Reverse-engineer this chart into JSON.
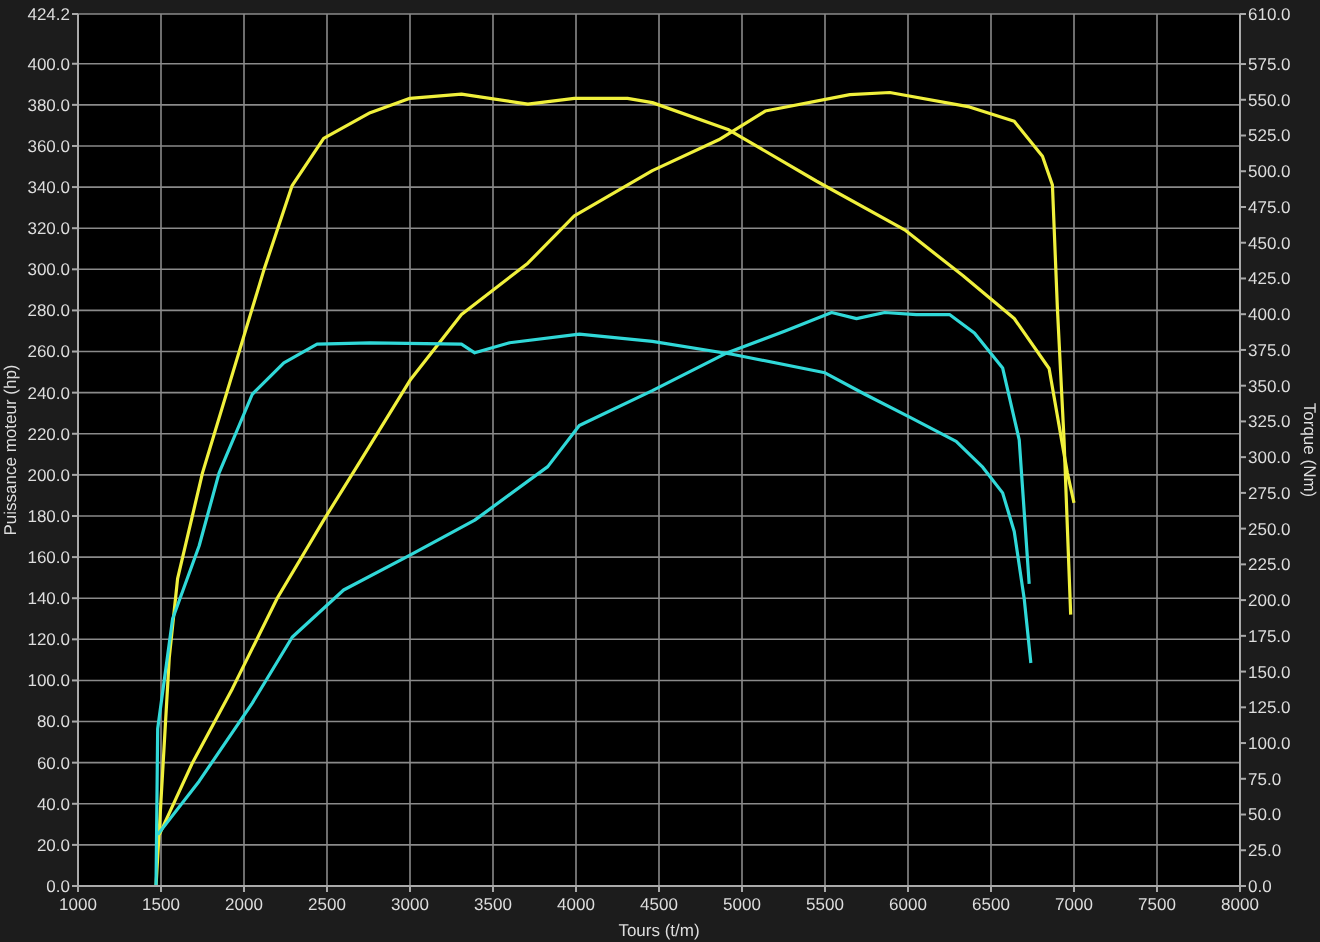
{
  "chart_data": {
    "type": "line",
    "xlabel": "Tours (t/m)",
    "ylabel": "Puissance moteur (hp)",
    "y2label": "Torque (Nm)",
    "xlim": [
      1000,
      8000
    ],
    "xticks": [
      1000,
      1500,
      2000,
      2500,
      3000,
      3500,
      4000,
      4500,
      5000,
      5500,
      6000,
      6500,
      7000,
      7500,
      8000
    ],
    "ylim": [
      0,
      424.2
    ],
    "yticks": [
      {
        "value": 0,
        "label": "0.0"
      },
      {
        "value": 20,
        "label": "20.0"
      },
      {
        "value": 40,
        "label": "40.0"
      },
      {
        "value": 60,
        "label": "60.0"
      },
      {
        "value": 80,
        "label": "80.0"
      },
      {
        "value": 100,
        "label": "100.0"
      },
      {
        "value": 120,
        "label": "120.0"
      },
      {
        "value": 140,
        "label": "140.0"
      },
      {
        "value": 160,
        "label": "160.0"
      },
      {
        "value": 180,
        "label": "180.0"
      },
      {
        "value": 200,
        "label": "200.0"
      },
      {
        "value": 220,
        "label": "220.0"
      },
      {
        "value": 240,
        "label": "240.0"
      },
      {
        "value": 260,
        "label": "260.0"
      },
      {
        "value": 280,
        "label": "280.0"
      },
      {
        "value": 300,
        "label": "300.0"
      },
      {
        "value": 320,
        "label": "320.0"
      },
      {
        "value": 340,
        "label": "340.0"
      },
      {
        "value": 360,
        "label": "360.0"
      },
      {
        "value": 380,
        "label": "380.0"
      },
      {
        "value": 400,
        "label": "400.0"
      },
      {
        "value": 424.2,
        "label": "424.2"
      }
    ],
    "y2lim": [
      0,
      610
    ],
    "y2ticks": [
      {
        "value": 0,
        "label": "0.0"
      },
      {
        "value": 25,
        "label": "25.0"
      },
      {
        "value": 50,
        "label": "50.0"
      },
      {
        "value": 75,
        "label": "75.0"
      },
      {
        "value": 100,
        "label": "100.0"
      },
      {
        "value": 125,
        "label": "125.0"
      },
      {
        "value": 150,
        "label": "150.0"
      },
      {
        "value": 175,
        "label": "175.0"
      },
      {
        "value": 200,
        "label": "200.0"
      },
      {
        "value": 225,
        "label": "225.0"
      },
      {
        "value": 250,
        "label": "250.0"
      },
      {
        "value": 275,
        "label": "275.0"
      },
      {
        "value": 300,
        "label": "300.0"
      },
      {
        "value": 325,
        "label": "325.0"
      },
      {
        "value": 350,
        "label": "350.0"
      },
      {
        "value": 375,
        "label": "375.0"
      },
      {
        "value": 400,
        "label": "400.0"
      },
      {
        "value": 425,
        "label": "425.0"
      },
      {
        "value": 450,
        "label": "450.0"
      },
      {
        "value": 475,
        "label": "475.0"
      },
      {
        "value": 500,
        "label": "500.0"
      },
      {
        "value": 525,
        "label": "525.0"
      },
      {
        "value": 550,
        "label": "550.0"
      },
      {
        "value": 575,
        "label": "575.0"
      },
      {
        "value": 610,
        "label": "610.0"
      }
    ],
    "grid": true,
    "marker": "none",
    "line_style": "solid",
    "series": [
      {
        "color": "#f0f03c",
        "x": [
          1490,
          1690,
          1930,
          2200,
          2480,
          2680,
          3000,
          3310,
          3710,
          3990,
          4460,
          4860,
          5140,
          5650,
          5890,
          6370,
          6640,
          6810,
          6870,
          6900,
          6940,
          6980
        ],
        "values": [
          25,
          60,
          96,
          140,
          178,
          204,
          246,
          278,
          303,
          326,
          348,
          363,
          377,
          385,
          386,
          379,
          372,
          355,
          341,
          281,
          217,
          132
        ]
      },
      {
        "color": "#f0f03c",
        "axis": "y2",
        "x": [
          1470,
          1500,
          1550,
          1600,
          1750,
          2120,
          2290,
          2480,
          2760,
          3000,
          3310,
          3710,
          3990,
          4310,
          4460,
          4920,
          5450,
          5980,
          6330,
          6640,
          6850,
          6960,
          7000
        ],
        "values": [
          0,
          60,
          160,
          215,
          289,
          431,
          490,
          523,
          541,
          551,
          554,
          547,
          551,
          551,
          548,
          529,
          493,
          459,
          427,
          397,
          362,
          289,
          268
        ]
      },
      {
        "color": "#30d8d8",
        "x": [
          1480,
          1730,
          2050,
          2290,
          2600,
          3000,
          3390,
          3830,
          4020,
          4460,
          4900,
          5260,
          5540,
          5690,
          5860,
          6050,
          6250,
          6400,
          6570,
          6670,
          6730
        ],
        "values": [
          25,
          51,
          89,
          121,
          144,
          161,
          178,
          204,
          224,
          241,
          259,
          270,
          279,
          276,
          279,
          278,
          278,
          269,
          252,
          217,
          147
        ]
      },
      {
        "color": "#30d8d8",
        "axis": "y2",
        "x": [
          1470,
          1480,
          1570,
          1730,
          1850,
          2050,
          2240,
          2440,
          2760,
          3310,
          3390,
          3600,
          4020,
          4460,
          4940,
          5500,
          5740,
          6010,
          6290,
          6450,
          6570,
          6640,
          6700,
          6740
        ],
        "values": [
          0,
          110,
          187,
          238,
          289,
          344,
          366,
          379,
          380,
          379,
          373,
          380,
          386,
          381,
          372,
          359,
          344,
          328,
          311,
          293,
          275,
          248,
          201,
          156
        ]
      }
    ]
  }
}
